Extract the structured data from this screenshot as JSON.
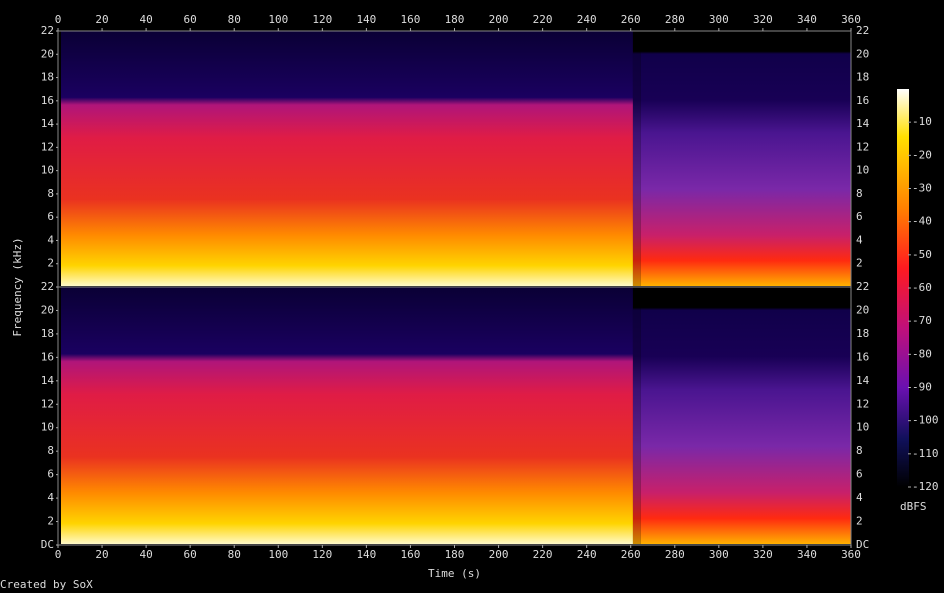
{
  "chart_data": [
    {
      "type": "spectrogram",
      "ylabel": "Frequency (kHz)",
      "xlim": [
        0,
        360
      ],
      "xticks": [
        0,
        20,
        40,
        60,
        80,
        100,
        120,
        140,
        160,
        180,
        200,
        220,
        240,
        260,
        280,
        300,
        320,
        340,
        360
      ],
      "ylim": [
        0,
        22
      ],
      "yticks": [
        2,
        4,
        6,
        8,
        10,
        12,
        14,
        16,
        18,
        20,
        22
      ],
      "xaxis_side": "top"
    },
    {
      "type": "spectrogram",
      "xlabel": "Time (s)",
      "xlim": [
        0,
        360
      ],
      "xticks": [
        0,
        20,
        40,
        60,
        80,
        100,
        120,
        140,
        160,
        180,
        200,
        220,
        240,
        260,
        280,
        300,
        320,
        340,
        360
      ],
      "ylim": [
        0,
        22
      ],
      "yticks": [
        {
          "value": 0,
          "label": "DC"
        },
        2,
        4,
        6,
        8,
        10,
        12,
        14,
        16,
        18,
        20,
        22
      ],
      "xaxis_side": "bottom"
    }
  ],
  "colorbar": {
    "label": "dBFS",
    "lim": [
      -120,
      0
    ],
    "ticks": [
      -10,
      -20,
      -30,
      -40,
      -50,
      -60,
      -70,
      -80,
      -90,
      -100,
      -110,
      -120
    ]
  },
  "footer": "Created by SoX"
}
